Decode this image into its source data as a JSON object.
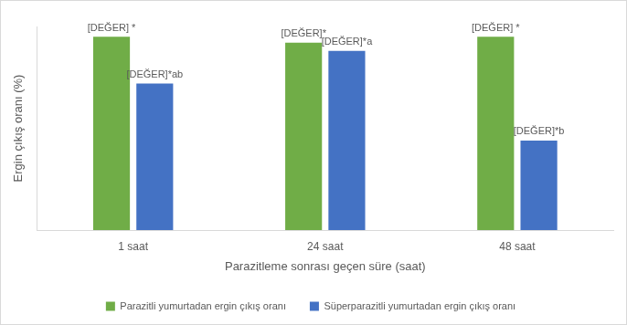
{
  "chart_data": {
    "type": "bar",
    "categories": [
      "1 saat",
      "24 saat",
      "48 saat"
    ],
    "x_label": "Parazitleme sonrası geçen süre (saat)",
    "y_label": "Ergin çıkış oranı (%)",
    "series": [
      {
        "name": "Parazitli yumurtadan ergin çıkış oranı",
        "color": "#70ad47",
        "values": [
          95,
          92,
          95
        ],
        "value_labels": [
          "[DEĞER] *",
          "[DEĞER]*",
          "[DEĞER] *"
        ]
      },
      {
        "name": "Süperparazitli yumurtadan ergin çıkış oranı",
        "color": "#4472c4",
        "values": [
          72,
          88,
          44
        ],
        "value_labels": [
          "[DEĞER]*ab",
          "[DEĞER]*a",
          "[DEĞER]*b"
        ]
      }
    ],
    "ylim": [
      0,
      100
    ],
    "grid": false,
    "legend": "bottom",
    "data_labels": true,
    "tick_labels": "x"
  }
}
